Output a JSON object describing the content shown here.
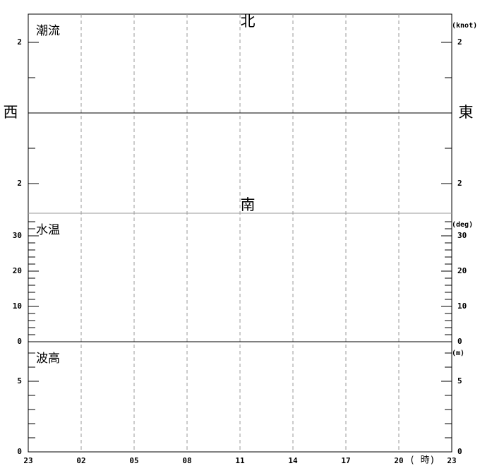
{
  "chart_data": [
    {
      "type": "line",
      "title": "潮流",
      "unit": "(knot)",
      "compass": {
        "north": "北",
        "south": "南",
        "west": "西",
        "east": "東"
      },
      "ylim": [
        -2.84,
        2.8
      ],
      "yticks": [
        {
          "value": 2,
          "label": "2"
        },
        {
          "value": -2,
          "label": "2"
        }
      ],
      "minor_yticks": [
        1,
        -1
      ],
      "zero_line": 0
    },
    {
      "type": "line",
      "title": "水温",
      "unit": "(deg)",
      "ylim": [
        0,
        36.4
      ],
      "yticks": [
        30,
        20,
        10,
        0
      ],
      "minor_yticks": [
        2,
        4,
        6,
        8,
        12,
        14,
        16,
        18,
        22,
        24,
        26,
        28,
        32,
        34
      ],
      "zero_line": 0
    },
    {
      "type": "line",
      "title": "波高",
      "unit": "(m)",
      "ylim": [
        0,
        7.8
      ],
      "yticks": [
        5,
        0
      ],
      "minor_yticks": [
        1,
        2,
        3,
        4,
        6,
        7
      ]
    }
  ],
  "x_axis": {
    "categories": [
      "23",
      "02",
      "05",
      "08",
      "11",
      "14",
      "17",
      "20",
      "23"
    ],
    "unit": "( 時)"
  }
}
